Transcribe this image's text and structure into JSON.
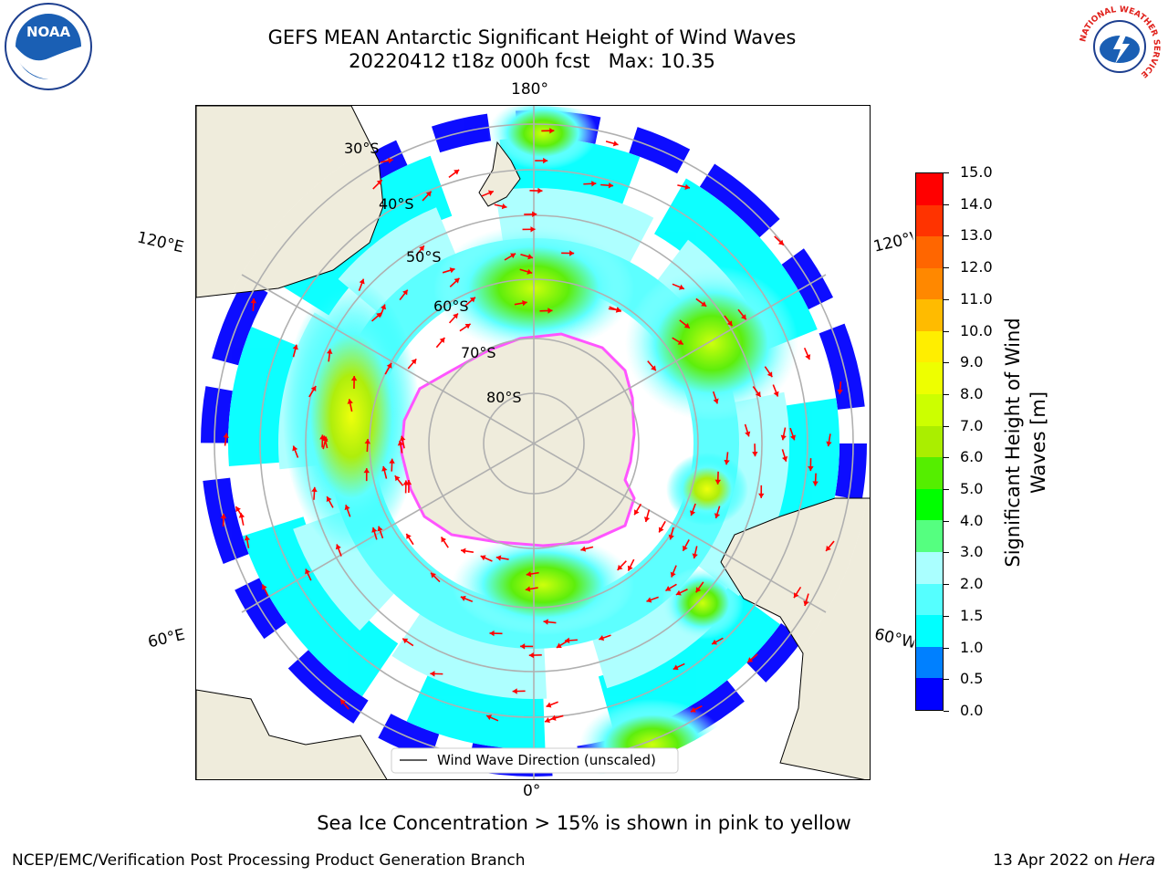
{
  "title": {
    "line1": "GEFS MEAN Antarctic Significant Height of Wind Waves",
    "line2": "20220412 t18z 000h fcst   Max: 10.35"
  },
  "logos": {
    "left": {
      "icon": "noaa-logo",
      "text": "NOAA"
    },
    "right": {
      "icon": "nws-logo",
      "ring_text": "NATIONAL WEATHER SERVICE"
    }
  },
  "map": {
    "projection": "south-polar-stereographic",
    "lon_labels": {
      "top": "180°",
      "bottom": "0°",
      "left_upper": "120°E",
      "left_lower": "60°E",
      "right_upper": "120°W",
      "right_lower": "60°W"
    },
    "lat_labels": [
      "30°S",
      "40°S",
      "50°S",
      "60°S",
      "70°S",
      "80°S"
    ],
    "legend": "Wind Wave Direction (unscaled)",
    "colors": {
      "land": "#efecdc",
      "ocean_empty": "#ffffff",
      "arrow": "#ff0000",
      "ice_edge": "#ff55ff",
      "grid": "#b0b0b0"
    }
  },
  "colorbar": {
    "label": "Significant Height of Wind Waves [m]",
    "ticks": [
      "0.0",
      "0.5",
      "1.0",
      "1.5",
      "2.0",
      "3.0",
      "4.0",
      "5.0",
      "6.0",
      "7.0",
      "8.0",
      "9.0",
      "10.0",
      "11.0",
      "12.0",
      "13.0",
      "14.0",
      "15.0"
    ],
    "colors": [
      "#0000ff",
      "#0080ff",
      "#00ffff",
      "#55ffff",
      "#aaffff",
      "#55ff80",
      "#00ff00",
      "#55ee00",
      "#aaee00",
      "#ccff00",
      "#eeff00",
      "#ffee00",
      "#ffbb00",
      "#ff8800",
      "#ff6600",
      "#ff3300",
      "#ff0000"
    ]
  },
  "footer": {
    "note": "Sea Ice Concentration > 15% is shown in pink to yellow",
    "left": "NCEP/EMC/Verification Post Processing Product Generation Branch",
    "right_prefix": "13 Apr 2022 on ",
    "right_machine": "Hera"
  }
}
